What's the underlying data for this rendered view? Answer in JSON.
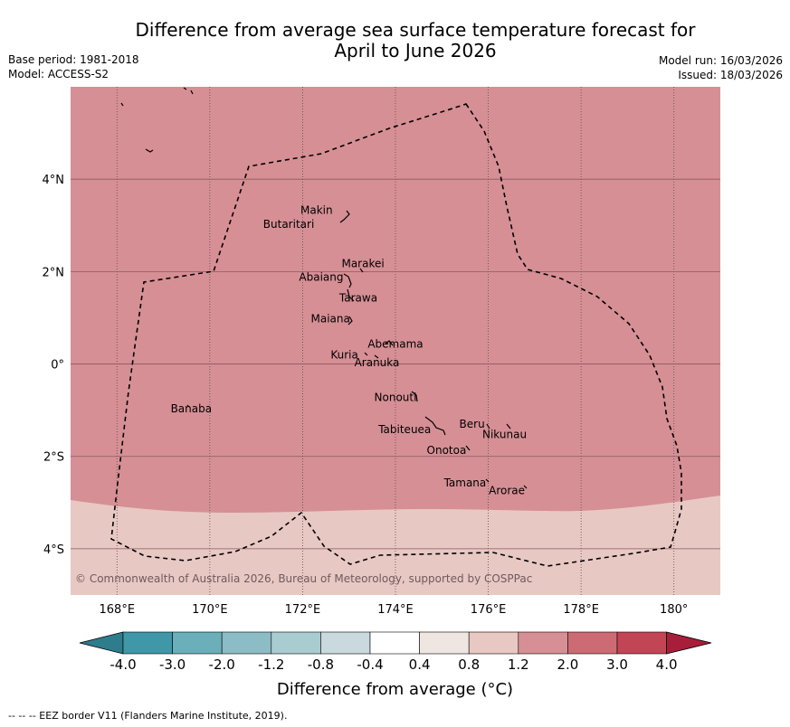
{
  "header": {
    "title_line1": "Difference from average sea surface temperature forecast for",
    "title_line2": "April to June 2026",
    "base_period": "Base period: 1981-2018",
    "model": "Model: ACCESS-S2",
    "model_run": "Model run: 16/03/2026",
    "issued": "Issued: 18/03/2026"
  },
  "map": {
    "lon_range": [
      167,
      181
    ],
    "lat_range": [
      -5,
      6
    ],
    "lon_ticks": [
      {
        "value": 168,
        "label": "168°E"
      },
      {
        "value": 170,
        "label": "170°E"
      },
      {
        "value": 172,
        "label": "172°E"
      },
      {
        "value": 174,
        "label": "174°E"
      },
      {
        "value": 176,
        "label": "176°E"
      },
      {
        "value": 178,
        "label": "178°E"
      },
      {
        "value": 180,
        "label": "180°"
      }
    ],
    "lat_ticks": [
      {
        "value": 4,
        "label": "4°N"
      },
      {
        "value": 2,
        "label": "2°N"
      },
      {
        "value": 0,
        "label": "0°"
      },
      {
        "value": -2,
        "label": "2°S"
      },
      {
        "value": -4,
        "label": "4°S"
      }
    ],
    "anomaly_zones": [
      {
        "range": "1.2 to 2.0",
        "color": "#d68f95",
        "description": "most of region"
      },
      {
        "range": "0.8 to 1.2",
        "color": "#e8c8c3",
        "description": "south of about 3°S"
      }
    ],
    "places": [
      {
        "name": "Makin",
        "lon": 172.3,
        "lat": 3.25
      },
      {
        "name": "Butaritari",
        "lon": 171.7,
        "lat": 2.95
      },
      {
        "name": "Marakei",
        "lon": 173.3,
        "lat": 2.1
      },
      {
        "name": "Abaiang",
        "lon": 172.4,
        "lat": 1.8
      },
      {
        "name": "Tarawa",
        "lon": 173.2,
        "lat": 1.35
      },
      {
        "name": "Maiana",
        "lon": 172.6,
        "lat": 0.9
      },
      {
        "name": "Abemama",
        "lon": 174.0,
        "lat": 0.35
      },
      {
        "name": "Kuria",
        "lon": 172.9,
        "lat": 0.12
      },
      {
        "name": "Aranuka",
        "lon": 173.6,
        "lat": -0.05
      },
      {
        "name": "Nonouti",
        "lon": 174.0,
        "lat": -0.8
      },
      {
        "name": "Banaba",
        "lon": 169.6,
        "lat": -1.05
      },
      {
        "name": "Beru",
        "lon": 175.65,
        "lat": -1.38
      },
      {
        "name": "Nikunau",
        "lon": 176.35,
        "lat": -1.6
      },
      {
        "name": "Tabiteuea",
        "lon": 174.2,
        "lat": -1.5
      },
      {
        "name": "Onotoa",
        "lon": 175.1,
        "lat": -1.95
      },
      {
        "name": "Tamana",
        "lon": 175.5,
        "lat": -2.65
      },
      {
        "name": "Arorae",
        "lon": 176.4,
        "lat": -2.82
      }
    ],
    "copyright": "© Commonwealth of Australia 2026, Bureau of Meteorology, supported by COSPPac"
  },
  "colorbar": {
    "labels": [
      "-4.0",
      "-3.0",
      "-2.0",
      "-1.2",
      "-0.8",
      "-0.4",
      "0.4",
      "0.8",
      "1.2",
      "2.0",
      "3.0",
      "4.0"
    ],
    "colors": [
      "#3f97a8",
      "#6aafba",
      "#8cbcc5",
      "#a9ccd0",
      "#c9d9dd",
      "#ffffff",
      "#efe6e2",
      "#e8c8c3",
      "#d68f95",
      "#cd6b74",
      "#c24556"
    ],
    "extend_low_color": "#2e7d8c",
    "extend_high_color": "#a81e3a",
    "title": "Difference from average (°C)"
  },
  "footnote": "--  --  -- EEZ border V11 (Flanders Marine Institute, 2019)."
}
